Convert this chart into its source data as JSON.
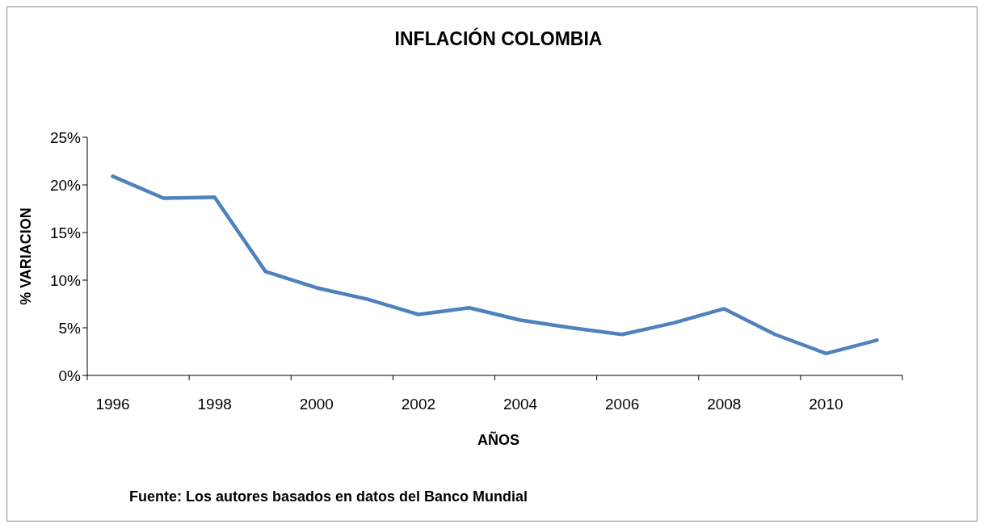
{
  "chart_data": {
    "type": "line",
    "title": "INFLACIÓN COLOMBIA",
    "xlabel": "AÑOS",
    "ylabel": "% VARIACION",
    "annotations": [
      "Fuente: Los autores basados en datos del Banco Mundial"
    ],
    "categories": [
      "1996",
      null,
      "1998",
      null,
      "2000",
      null,
      "2002",
      null,
      "2004",
      null,
      "2006",
      null,
      "2008",
      null,
      "2010",
      null
    ],
    "series": [
      {
        "color": "#4f81bd",
        "values": [
          20.9,
          18.6,
          18.7,
          10.9,
          9.2,
          8.0,
          6.4,
          7.1,
          5.8,
          5.0,
          4.3,
          5.5,
          7.0,
          4.3,
          2.3,
          3.7
        ]
      }
    ],
    "ylim": [
      0,
      25
    ],
    "yticks": [
      {
        "value": 0,
        "label": "0%"
      },
      {
        "value": 5,
        "label": "5%"
      },
      {
        "value": 10,
        "label": "10%"
      },
      {
        "value": 15,
        "label": "15%"
      },
      {
        "value": 20,
        "label": "20%"
      },
      {
        "value": 25,
        "label": "25%"
      }
    ],
    "grid": false,
    "marker": "none",
    "line_style": "solid"
  }
}
